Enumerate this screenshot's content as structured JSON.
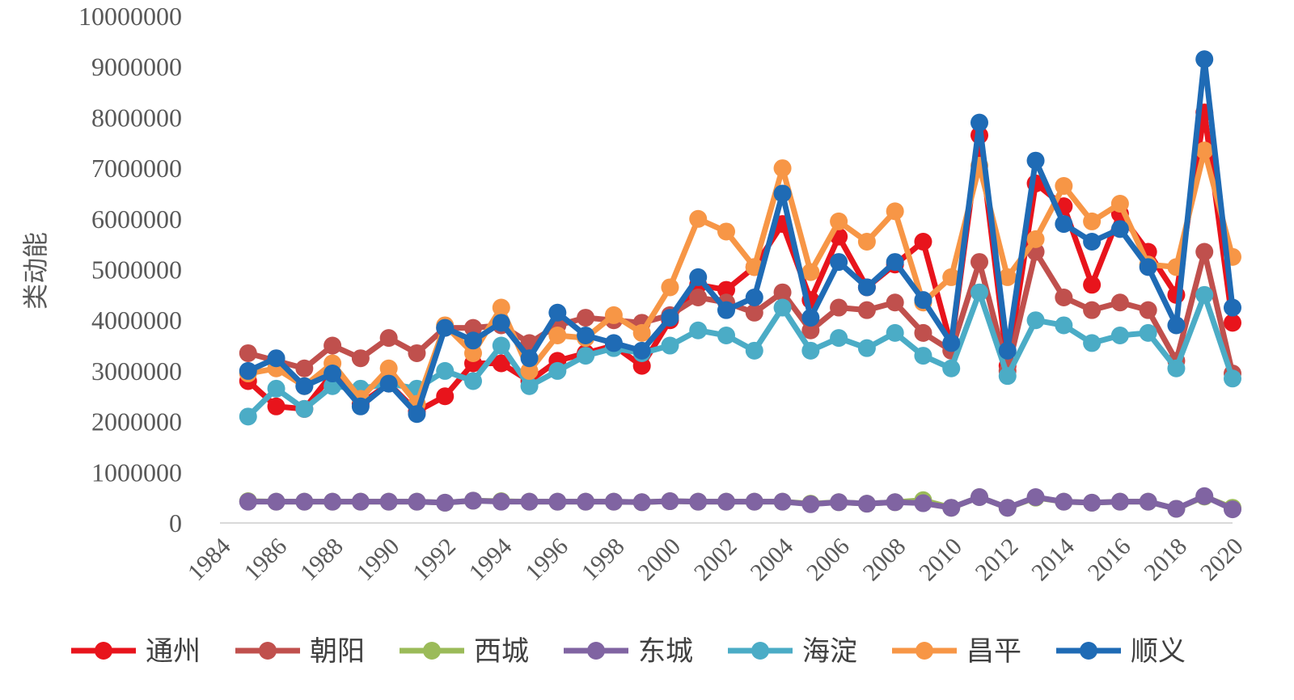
{
  "chart_data": {
    "type": "line",
    "title": "",
    "xlabel": "",
    "ylabel": "类动能",
    "xlim": [
      1984,
      2020
    ],
    "ylim": [
      0,
      10000000
    ],
    "xticks": [
      "1984",
      "1986",
      "1988",
      "1990",
      "1992",
      "1994",
      "1996",
      "1998",
      "2000",
      "2002",
      "2004",
      "2006",
      "2008",
      "2010",
      "2012",
      "2014",
      "2016",
      "2018",
      "2020"
    ],
    "yticks": [
      "0",
      "1000000",
      "2000000",
      "3000000",
      "4000000",
      "5000000",
      "6000000",
      "7000000",
      "8000000",
      "9000000",
      "10000000"
    ],
    "grid": false,
    "legend_position": "bottom",
    "x": [
      1985,
      1986,
      1987,
      1988,
      1989,
      1990,
      1991,
      1992,
      1993,
      1994,
      1995,
      1996,
      1997,
      1998,
      1999,
      2000,
      2001,
      2002,
      2003,
      2004,
      2005,
      2006,
      2007,
      2008,
      2009,
      2010,
      2011,
      2012,
      2013,
      2014,
      2015,
      2016,
      2017,
      2018,
      2019,
      2020
    ],
    "series": [
      {
        "name": "通州",
        "color": "#e8141c",
        "values": [
          2800000,
          2300000,
          2250000,
          2950000,
          2350000,
          2750000,
          2200000,
          2500000,
          3150000,
          3150000,
          2800000,
          3200000,
          3350000,
          3500000,
          3100000,
          4000000,
          4700000,
          4600000,
          5050000,
          5900000,
          4400000,
          5650000,
          4650000,
          5100000,
          5550000,
          3500000,
          7650000,
          3100000,
          6700000,
          6250000,
          4700000,
          6100000,
          5350000,
          4500000,
          8100000,
          3950000
        ]
      },
      {
        "name": "朝阳",
        "color": "#c0504d",
        "values": [
          3350000,
          3200000,
          3050000,
          3500000,
          3250000,
          3650000,
          3350000,
          3850000,
          3850000,
          3900000,
          3550000,
          3900000,
          4050000,
          4000000,
          3950000,
          4100000,
          4450000,
          4350000,
          4150000,
          4550000,
          3800000,
          4250000,
          4200000,
          4350000,
          3750000,
          3400000,
          5150000,
          3000000,
          5350000,
          4450000,
          4200000,
          4350000,
          4200000,
          3200000,
          5350000,
          2950000
        ]
      },
      {
        "name": "西城",
        "color": "#9bbb59",
        "values": [
          430000,
          420000,
          420000,
          420000,
          420000,
          420000,
          420000,
          400000,
          440000,
          430000,
          420000,
          420000,
          420000,
          420000,
          410000,
          430000,
          420000,
          420000,
          420000,
          420000,
          380000,
          410000,
          380000,
          410000,
          450000,
          300000,
          510000,
          300000,
          500000,
          420000,
          400000,
          420000,
          420000,
          280000,
          520000,
          300000
        ]
      },
      {
        "name": "东城",
        "color": "#8064a2",
        "values": [
          420000,
          420000,
          420000,
          420000,
          420000,
          420000,
          420000,
          400000,
          440000,
          420000,
          420000,
          420000,
          420000,
          420000,
          410000,
          430000,
          420000,
          420000,
          420000,
          420000,
          370000,
          410000,
          380000,
          410000,
          390000,
          300000,
          510000,
          300000,
          510000,
          420000,
          400000,
          420000,
          420000,
          280000,
          530000,
          270000
        ]
      },
      {
        "name": "海淀",
        "color": "#4bacc6",
        "values": [
          2100000,
          2650000,
          2250000,
          2700000,
          2650000,
          2750000,
          2650000,
          3000000,
          2800000,
          3500000,
          2700000,
          3000000,
          3300000,
          3450000,
          3350000,
          3500000,
          3800000,
          3700000,
          3400000,
          4250000,
          3400000,
          3650000,
          3450000,
          3750000,
          3300000,
          3050000,
          4550000,
          2900000,
          4000000,
          3900000,
          3550000,
          3700000,
          3750000,
          3050000,
          4500000,
          2850000
        ]
      },
      {
        "name": "昌平",
        "color": "#f79646",
        "values": [
          2950000,
          3050000,
          2700000,
          3150000,
          2450000,
          3050000,
          2350000,
          3900000,
          3350000,
          4250000,
          3000000,
          3700000,
          3650000,
          4100000,
          3750000,
          4650000,
          6000000,
          5750000,
          5050000,
          7000000,
          4950000,
          5950000,
          5550000,
          6150000,
          4350000,
          4850000,
          7050000,
          4850000,
          5600000,
          6650000,
          5950000,
          6300000,
          5100000,
          5050000,
          7350000,
          5250000
        ]
      },
      {
        "name": "顺义",
        "color": "#1f6bb5",
        "values": [
          3000000,
          3250000,
          2700000,
          2950000,
          2300000,
          2750000,
          2150000,
          3850000,
          3600000,
          3950000,
          3250000,
          4150000,
          3700000,
          3550000,
          3400000,
          4050000,
          4850000,
          4200000,
          4450000,
          6500000,
          4050000,
          5150000,
          4650000,
          5150000,
          4400000,
          3550000,
          7900000,
          3400000,
          7150000,
          5900000,
          5550000,
          5800000,
          5050000,
          3900000,
          9150000,
          4250000
        ]
      }
    ]
  }
}
